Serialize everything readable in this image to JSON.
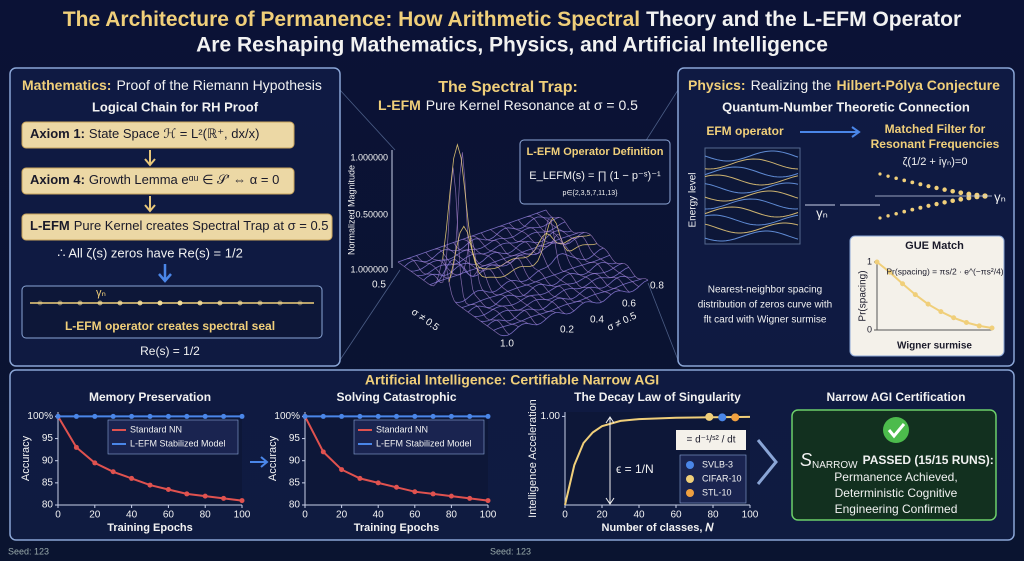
{
  "title": {
    "line1_gold": "The Architecture of Permanence: How Arithmetic Spectral",
    "line1_white": "Theory and the L-EFM Operator",
    "line2": "Are Reshaping Mathematics, Physics, and Artificial Intelligence"
  },
  "mathematics": {
    "label": "Mathematics:",
    "heading": "Proof of the Riemann Hypothesis",
    "subtitle": "Logical Chain for RH Proof",
    "steps": [
      {
        "label": "Axiom 1:",
        "text": "State Space ℋ = L²(ℝ⁺, dx/x)"
      },
      {
        "label": "Axiom 4:",
        "text": "Growth Lemma eᵅᵘ ∈ 𝒮′ ⇔ α = 0"
      },
      {
        "label": "L-EFM",
        "text": "Pure Kernel creates Spectral Trap at σ = 0.5"
      }
    ],
    "conclusion": "∴ All ζ(s) zeros have Re(s) = 1/2",
    "seal_symbol": "γₙ",
    "seal_caption": "L-EFM operator creates spectral seal",
    "seal_line": "Re(s) = 1/2"
  },
  "spectral_trap": {
    "title": "The Spectral Trap:",
    "subtitle_highlight": "L-EFM",
    "subtitle": "Pure Kernel Resonance at σ = 0.5",
    "z_label": "Normalized Magnitude",
    "z_ticks": [
      "1.000000",
      "0.50000",
      "1.000000"
    ],
    "left_axis_label": "σ ≠ 0.5",
    "left_ticks": [
      "0.5",
      "1.0"
    ],
    "right_axis_label": "σ ≠ 0.5",
    "right_ticks": [
      "0.8",
      "0.6",
      "0.4",
      "0.2"
    ],
    "definition_title": "L-EFM Operator Definition",
    "definition": "E_LEFM(s) = ∏ (1 − p⁻ˢ)⁻¹",
    "definition_index": "p∈{2,3,5,7,11,13}"
  },
  "physics": {
    "label": "Physics:",
    "heading": "Realizing the",
    "heading_highlight": "Hilbert-Pólya Conjecture",
    "subtitle": "Quantum-Number Theoretic Connection",
    "operator": "EFM operator",
    "energy_label": "Energy level",
    "gamma": "γₙ",
    "filter_title": [
      "Matched Filter for",
      "Resonant Frequencies"
    ],
    "filter_equation": "ζ(1/2 + iγₙ)=0",
    "filter_gamma": "γₙ",
    "description": [
      "Nearest-neighbor spacing",
      "distribution of zeros curve with",
      "flt card with Wigner surmise"
    ],
    "gue": {
      "type": "line",
      "title": "GUE Match",
      "formula": "Pr(spacing) = πs/2 · e^(−πs²/4)",
      "y_label": "Pr(spacing)",
      "x_label": "Wigner surmise",
      "x": [
        0,
        0.3,
        0.6,
        0.9,
        1.2,
        1.5,
        1.8,
        2.1,
        2.4,
        2.7
      ],
      "xlim": [
        0,
        2.7
      ],
      "ylim": [
        0,
        1
      ],
      "yticks": [
        0,
        1
      ],
      "series": [
        {
          "color": "#f0cf7a",
          "values": [
            1,
            0.85,
            0.68,
            0.52,
            0.38,
            0.27,
            0.18,
            0.11,
            0.06,
            0.03
          ],
          "markers": true
        }
      ]
    }
  },
  "ai": {
    "title": "Artificial Intelligence: Certifiable Narrow AGI",
    "charts": [
      {
        "type": "line",
        "title": "Memory Preservation",
        "x_label": "Training Epochs",
        "y_label": "Accuracy",
        "legend": "upper right",
        "x": [
          0,
          10,
          20,
          30,
          40,
          50,
          60,
          70,
          80,
          90,
          100
        ],
        "xlim": [
          0,
          100
        ],
        "xticks": [
          0,
          20,
          40,
          60,
          80,
          100
        ],
        "ylim": [
          80,
          101
        ],
        "yticks": [
          80,
          85,
          90,
          95,
          {
            "value": 100,
            "label": "100%"
          }
        ],
        "series": [
          {
            "name": "Standard NN",
            "color": "#e0524f",
            "values": [
              100,
              93,
              89.5,
              87.5,
              86,
              84.5,
              83.5,
              82.5,
              82,
              81.5,
              81
            ],
            "markers": true
          },
          {
            "name": "L-EFM Stabilized Model",
            "color": "#4a86e8",
            "values": [
              100,
              100,
              100,
              100,
              100,
              100,
              100,
              100,
              100,
              100,
              100
            ],
            "markers": true
          }
        ]
      },
      {
        "type": "line",
        "title": "Solving Catastrophic",
        "x_label": "Training Epochs",
        "y_label": "Accuracy",
        "legend": "upper right",
        "x": [
          0,
          10,
          20,
          30,
          40,
          50,
          60,
          70,
          80,
          90,
          100
        ],
        "xlim": [
          0,
          100
        ],
        "xticks": [
          0,
          20,
          40,
          60,
          80,
          100
        ],
        "ylim": [
          80,
          101
        ],
        "yticks": [
          80,
          85,
          90,
          95,
          {
            "value": 100,
            "label": "100%"
          }
        ],
        "series": [
          {
            "name": "Standard NN",
            "color": "#e0524f",
            "values": [
              100,
              92,
              88,
              86,
              85,
              84,
              83,
              82.5,
              82,
              81.5,
              81
            ],
            "markers": true
          },
          {
            "name": "L-EFM Stabilized Model",
            "color": "#4a86e8",
            "values": [
              100,
              100,
              100,
              100,
              100,
              100,
              100,
              100,
              100,
              100,
              100
            ],
            "markers": true
          }
        ]
      },
      {
        "type": "line",
        "title": "The Decay Law of Singularity",
        "x_label": "Number of classes, 𝑁",
        "y_label": "Intelligence Acceleration",
        "legend": "lower right",
        "x": [
          0,
          5,
          10,
          15,
          20,
          30,
          40,
          60,
          80,
          100
        ],
        "xlim": [
          0,
          100
        ],
        "xticks": [
          0,
          20,
          40,
          60,
          80,
          100
        ],
        "ylim": [
          0,
          1.05
        ],
        "yticks": [
          {
            "value": 1,
            "label": "1.00"
          }
        ],
        "annotations": [
          "ϵ = 1/N",
          "= d⁻¹/ˢ² / dt"
        ],
        "series": [
          {
            "color": "#f0cf7a",
            "values": [
              0,
              0.45,
              0.7,
              0.82,
              0.89,
              0.95,
              0.97,
              0.985,
              0.99,
              0.995
            ]
          },
          {
            "name": "SVLB-3",
            "type": "scatter",
            "color": "#4a86e8",
            "x": [
              85
            ],
            "values": [
              0.99
            ]
          },
          {
            "name": "CIFAR-10",
            "type": "scatter",
            "color": "#f0cf7a",
            "x": [
              78
            ],
            "values": [
              0.995
            ]
          },
          {
            "name": "STL-10",
            "type": "scatter",
            "color": "#f0a040",
            "x": [
              92
            ],
            "values": [
              0.99
            ]
          }
        ]
      }
    ],
    "certification": {
      "title": "Narrow AGI Certification",
      "symbol": "S",
      "subscript": "NARROW",
      "status": "PASSED (15/15 RUNS):",
      "lines": [
        "Permanence Achieved,",
        "Deterministic Cognitive",
        "Engineering Confirmed"
      ]
    }
  },
  "footer": [
    "Seed: 123",
    "Seed: 123"
  ]
}
